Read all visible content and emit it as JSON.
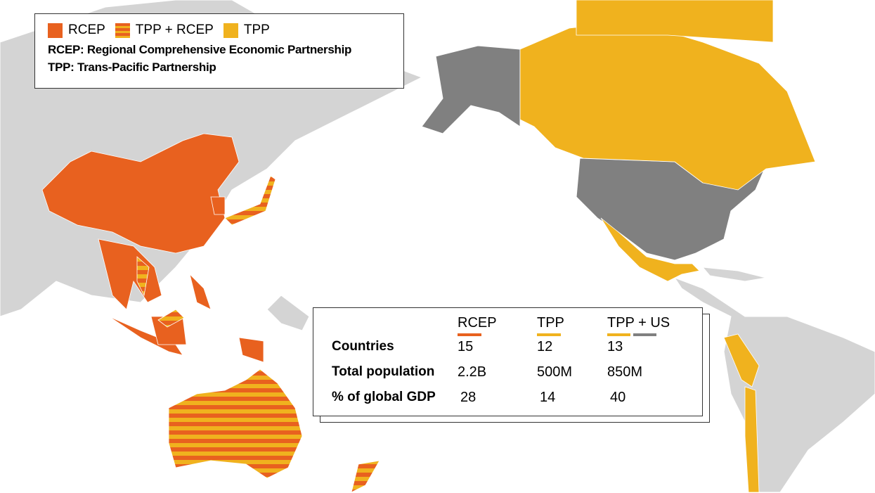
{
  "legend": {
    "items": [
      {
        "label": "RCEP",
        "color": "#e8611f"
      },
      {
        "label": "TPP + RCEP",
        "color": "#e8611f",
        "stripe": "#f0b21e"
      },
      {
        "label": "TPP",
        "color": "#f0b21e"
      }
    ],
    "notes": [
      "RCEP: Regional Comprehensive Economic Partnership",
      "TPP: Trans-Pacific Partnership"
    ]
  },
  "table": {
    "columns": [
      {
        "label": "RCEP",
        "colors": [
          "#e8611f"
        ]
      },
      {
        "label": "TPP",
        "colors": [
          "#f0b21e"
        ]
      },
      {
        "label": "TPP + US",
        "colors": [
          "#f0b21e",
          "#808080"
        ]
      }
    ],
    "rows": [
      [
        "Countries",
        15,
        12,
        13
      ],
      [
        "Total population",
        "2.2B",
        "500M",
        "850M"
      ],
      [
        "% of global GDP",
        28,
        14,
        40
      ]
    ]
  }
}
